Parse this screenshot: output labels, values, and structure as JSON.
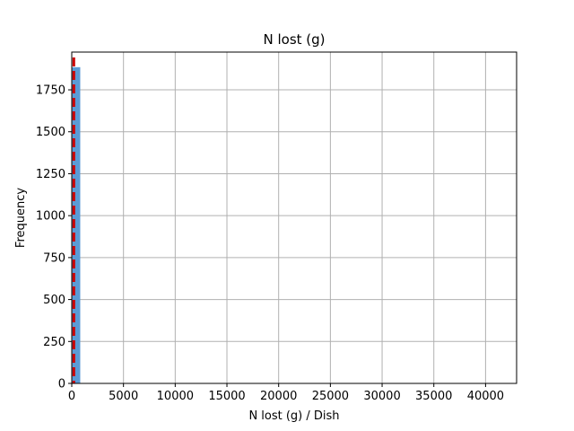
{
  "chart_data": {
    "type": "histogram",
    "title": "N lost (g)",
    "xlabel": "N lost (g) / Dish",
    "ylabel": "Frequency",
    "xlim": [
      0,
      43000
    ],
    "ylim": [
      0,
      1975
    ],
    "x_ticks": [
      0,
      5000,
      10000,
      15000,
      20000,
      25000,
      30000,
      35000,
      40000
    ],
    "y_ticks": [
      0,
      250,
      500,
      750,
      1000,
      1250,
      1500,
      1750
    ],
    "grid": true,
    "bin_width": 820,
    "bins": [
      {
        "x0": 0,
        "x1": 820,
        "count": 1885
      },
      {
        "x0": 40180,
        "x1": 41000,
        "count": 2
      }
    ],
    "reference_line": {
      "x": 200,
      "style": "dashed",
      "color": "#cc0000"
    },
    "colors": {
      "bar": "#5b9bd5",
      "grid": "#b0b0b0",
      "axis": "#000000"
    }
  }
}
